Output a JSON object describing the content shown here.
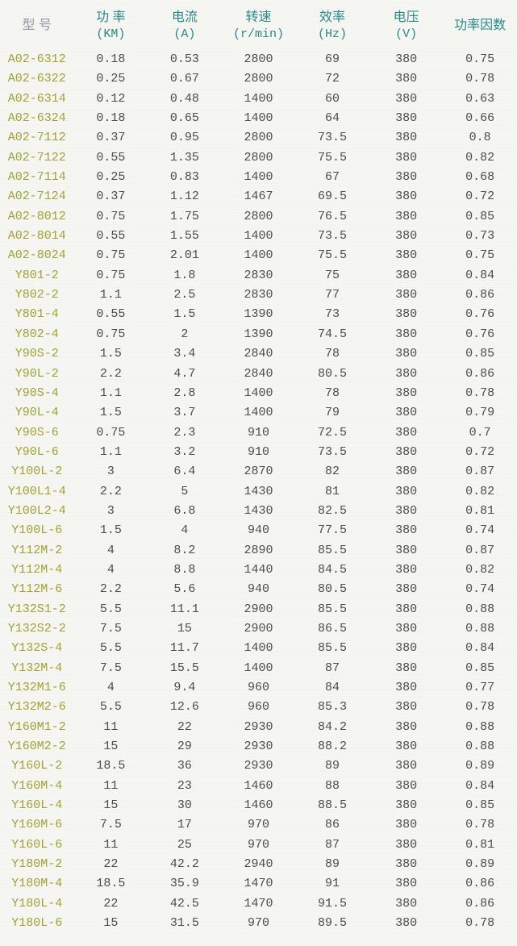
{
  "colors": {
    "header_accent": "#2c8888",
    "model_header_text": "#9496a8",
    "model_cell_text": "#a1a135",
    "value_text": "#4c4c4c",
    "page_background": "#f6f6f3"
  },
  "table": {
    "columns": [
      {
        "label": "型 号",
        "unit": ""
      },
      {
        "label": "功 率",
        "unit": "(KM)"
      },
      {
        "label": "电流",
        "unit": "(A)"
      },
      {
        "label": "转速",
        "unit": "(r/min)"
      },
      {
        "label": "效率",
        "unit": "(Hz)"
      },
      {
        "label": "电压",
        "unit": "(V)"
      },
      {
        "label": "功率因数",
        "unit": ""
      }
    ],
    "rows": [
      [
        "A02-6312",
        "0.18",
        "0.53",
        "2800",
        "69",
        "380",
        "0.75"
      ],
      [
        "A02-6322",
        "0.25",
        "0.67",
        "2800",
        "72",
        "380",
        "0.78"
      ],
      [
        "A02-6314",
        "0.12",
        "0.48",
        "1400",
        "60",
        "380",
        "0.63"
      ],
      [
        "A02-6324",
        "0.18",
        "0.65",
        "1400",
        "64",
        "380",
        "0.66"
      ],
      [
        "A02-7112",
        "0.37",
        "0.95",
        "2800",
        "73.5",
        "380",
        "0.8"
      ],
      [
        "A02-7122",
        "0.55",
        "1.35",
        "2800",
        "75.5",
        "380",
        "0.82"
      ],
      [
        "A02-7114",
        "0.25",
        "0.83",
        "1400",
        "67",
        "380",
        "0.68"
      ],
      [
        "A02-7124",
        "0.37",
        "1.12",
        "1467",
        "69.5",
        "380",
        "0.72"
      ],
      [
        "A02-8012",
        "0.75",
        "1.75",
        "2800",
        "76.5",
        "380",
        "0.85"
      ],
      [
        "A02-8014",
        "0.55",
        "1.55",
        "1400",
        "73.5",
        "380",
        "0.73"
      ],
      [
        "A02-8024",
        "0.75",
        "2.01",
        "1400",
        "75.5",
        "380",
        "0.75"
      ],
      [
        "Y801-2",
        "0.75",
        "1.8",
        "2830",
        "75",
        "380",
        "0.84"
      ],
      [
        "Y802-2",
        "1.1",
        "2.5",
        "2830",
        "77",
        "380",
        "0.86"
      ],
      [
        "Y801-4",
        "0.55",
        "1.5",
        "1390",
        "73",
        "380",
        "0.76"
      ],
      [
        "Y802-4",
        "0.75",
        "2",
        "1390",
        "74.5",
        "380",
        "0.76"
      ],
      [
        "Y90S-2",
        "1.5",
        "3.4",
        "2840",
        "78",
        "380",
        "0.85"
      ],
      [
        "Y90L-2",
        "2.2",
        "4.7",
        "2840",
        "80.5",
        "380",
        "0.86"
      ],
      [
        "Y90S-4",
        "1.1",
        "2.8",
        "1400",
        "78",
        "380",
        "0.78"
      ],
      [
        "Y90L-4",
        "1.5",
        "3.7",
        "1400",
        "79",
        "380",
        "0.79"
      ],
      [
        "Y90S-6",
        "0.75",
        "2.3",
        "910",
        "72.5",
        "380",
        "0.7"
      ],
      [
        "Y90L-6",
        "1.1",
        "3.2",
        "910",
        "73.5",
        "380",
        "0.72"
      ],
      [
        "Y100L-2",
        "3",
        "6.4",
        "2870",
        "82",
        "380",
        "0.87"
      ],
      [
        "Y100L1-4",
        "2.2",
        "5",
        "1430",
        "81",
        "380",
        "0.82"
      ],
      [
        "Y100L2-4",
        "3",
        "6.8",
        "1430",
        "82.5",
        "380",
        "0.81"
      ],
      [
        "Y100L-6",
        "1.5",
        "4",
        "940",
        "77.5",
        "380",
        "0.74"
      ],
      [
        "Y112M-2",
        "4",
        "8.2",
        "2890",
        "85.5",
        "380",
        "0.87"
      ],
      [
        "Y112M-4",
        "4",
        "8.8",
        "1440",
        "84.5",
        "380",
        "0.82"
      ],
      [
        "Y112M-6",
        "2.2",
        "5.6",
        "940",
        "80.5",
        "380",
        "0.74"
      ],
      [
        "Y132S1-2",
        "5.5",
        "11.1",
        "2900",
        "85.5",
        "380",
        "0.88"
      ],
      [
        "Y132S2-2",
        "7.5",
        "15",
        "2900",
        "86.5",
        "380",
        "0.88"
      ],
      [
        "Y132S-4",
        "5.5",
        "11.7",
        "1400",
        "85.5",
        "380",
        "0.84"
      ],
      [
        "Y132M-4",
        "7.5",
        "15.5",
        "1400",
        "87",
        "380",
        "0.85"
      ],
      [
        "Y132M1-6",
        "4",
        "9.4",
        "960",
        "84",
        "380",
        "0.77"
      ],
      [
        "Y132M2-6",
        "5.5",
        "12.6",
        "960",
        "85.3",
        "380",
        "0.78"
      ],
      [
        "Y160M1-2",
        "11",
        "22",
        "2930",
        "84.2",
        "380",
        "0.88"
      ],
      [
        "Y160M2-2",
        "15",
        "29",
        "2930",
        "88.2",
        "380",
        "0.88"
      ],
      [
        "Y160L-2",
        "18.5",
        "36",
        "2930",
        "89",
        "380",
        "0.89"
      ],
      [
        "Y160M-4",
        "11",
        "23",
        "1460",
        "88",
        "380",
        "0.84"
      ],
      [
        "Y160L-4",
        "15",
        "30",
        "1460",
        "88.5",
        "380",
        "0.85"
      ],
      [
        "Y160M-6",
        "7.5",
        "17",
        "970",
        "86",
        "380",
        "0.78"
      ],
      [
        "Y160L-6",
        "11",
        "25",
        "970",
        "87",
        "380",
        "0.81"
      ],
      [
        "Y180M-2",
        "22",
        "42.2",
        "2940",
        "89",
        "380",
        "0.89"
      ],
      [
        "Y180M-4",
        "18.5",
        "35.9",
        "1470",
        "91",
        "380",
        "0.86"
      ],
      [
        "Y180L-4",
        "22",
        "42.5",
        "1470",
        "91.5",
        "380",
        "0.86"
      ],
      [
        "Y180L-6",
        "15",
        "31.5",
        "970",
        "89.5",
        "380",
        "0.78"
      ]
    ]
  }
}
